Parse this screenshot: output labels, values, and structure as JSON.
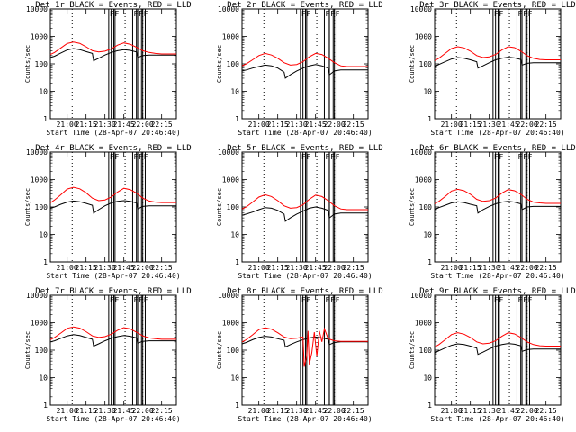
{
  "chart_data": {
    "type": "line",
    "layout": "3x3 grid of panels",
    "yscale": "log",
    "ylim": [
      1,
      10000
    ],
    "yticks": [
      "1",
      "10",
      "100",
      "1000",
      "10000"
    ],
    "ylabel": "Counts/sec",
    "xlabel": "Start Time (28-Apr-07 20:46:40)",
    "xticks": [
      "21:00",
      "21:15",
      "21:30",
      "21:45",
      "22:00",
      "22:15"
    ],
    "xlim": [
      "20:46:40",
      "22:26:40"
    ],
    "series_colors": {
      "events": "#000000",
      "lld": "#ff0000"
    },
    "flag_label": "F",
    "flag_times": [
      "21:33",
      "21:35",
      "21:37",
      "21:38",
      "21:52",
      "21:55",
      "21:56",
      "21:59",
      "22:00",
      "22:02"
    ],
    "dotted_lines": [
      "21:04",
      "21:46",
      "22:00"
    ],
    "panels": [
      {
        "title": "Det 1r BLACK = Events, RED = LLD",
        "events": {
          "times": [
            "20:46:40",
            "20:50",
            "20:55",
            "21:00",
            "21:05",
            "21:10",
            "21:15",
            "21:20",
            "21:21",
            "21:25",
            "21:30",
            "21:35",
            "21:40",
            "21:45",
            "21:50",
            "21:55",
            "21:56",
            "22:00",
            "22:05",
            "22:10",
            "22:15",
            "22:20",
            "22:26:40"
          ],
          "values": [
            170,
            190,
            250,
            320,
            360,
            330,
            280,
            240,
            130,
            160,
            210,
            260,
            300,
            330,
            310,
            270,
            170,
            200,
            210,
            210,
            210,
            210,
            210
          ]
        },
        "lld": {
          "times": [
            "20:46:40",
            "20:50",
            "20:55",
            "21:00",
            "21:05",
            "21:10",
            "21:15",
            "21:20",
            "21:25",
            "21:30",
            "21:35",
            "21:40",
            "21:45",
            "21:50",
            "21:55",
            "22:00",
            "22:05",
            "22:10",
            "22:15",
            "22:20",
            "22:26:40"
          ],
          "values": [
            220,
            260,
            380,
            550,
            620,
            560,
            420,
            300,
            270,
            290,
            350,
            480,
            580,
            520,
            400,
            300,
            260,
            240,
            230,
            230,
            230
          ]
        }
      },
      {
        "title": "Det 2r BLACK = Events, RED = LLD",
        "events": {
          "times": [
            "20:46:40",
            "20:50",
            "20:55",
            "21:00",
            "21:05",
            "21:10",
            "21:15",
            "21:20",
            "21:21",
            "21:25",
            "21:30",
            "21:35",
            "21:40",
            "21:45",
            "21:50",
            "21:55",
            "21:56",
            "22:00",
            "22:05",
            "22:10",
            "22:15",
            "22:20",
            "22:26:40"
          ],
          "values": [
            55,
            60,
            70,
            80,
            90,
            85,
            70,
            50,
            30,
            40,
            55,
            70,
            85,
            95,
            85,
            70,
            40,
            55,
            60,
            60,
            60,
            60,
            60
          ]
        },
        "lld": {
          "times": [
            "20:46:40",
            "20:50",
            "20:55",
            "21:00",
            "21:05",
            "21:10",
            "21:15",
            "21:20",
            "21:25",
            "21:30",
            "21:35",
            "21:40",
            "21:45",
            "21:50",
            "21:55",
            "22:00",
            "22:05",
            "22:10",
            "22:15",
            "22:20",
            "22:26:40"
          ],
          "values": [
            85,
            100,
            140,
            200,
            240,
            210,
            160,
            110,
            90,
            95,
            120,
            180,
            240,
            220,
            160,
            110,
            85,
            80,
            80,
            80,
            80
          ]
        }
      },
      {
        "title": "Det 3r BLACK = Events, RED = LLD",
        "events": {
          "times": [
            "20:46:40",
            "20:50",
            "20:55",
            "21:00",
            "21:05",
            "21:10",
            "21:15",
            "21:20",
            "21:21",
            "21:25",
            "21:30",
            "21:35",
            "21:40",
            "21:45",
            "21:50",
            "21:55",
            "21:56",
            "22:00",
            "22:05",
            "22:10",
            "22:15",
            "22:20",
            "22:26:40"
          ],
          "values": [
            80,
            95,
            120,
            150,
            170,
            160,
            140,
            120,
            70,
            85,
            110,
            140,
            160,
            175,
            165,
            145,
            90,
            105,
            110,
            110,
            110,
            110,
            110
          ]
        },
        "lld": {
          "times": [
            "20:46:40",
            "20:50",
            "20:55",
            "21:00",
            "21:05",
            "21:10",
            "21:15",
            "21:20",
            "21:25",
            "21:30",
            "21:35",
            "21:40",
            "21:45",
            "21:50",
            "21:55",
            "22:00",
            "22:05",
            "22:10",
            "22:15",
            "22:20",
            "22:26:40"
          ],
          "values": [
            130,
            160,
            240,
            360,
            420,
            380,
            290,
            200,
            170,
            180,
            220,
            320,
            420,
            390,
            290,
            200,
            160,
            145,
            140,
            140,
            140
          ]
        }
      },
      {
        "title": "Det 4r BLACK = Events, RED = LLD",
        "events": {
          "times": [
            "20:46:40",
            "20:50",
            "20:55",
            "21:00",
            "21:05",
            "21:10",
            "21:15",
            "21:20",
            "21:21",
            "21:25",
            "21:30",
            "21:35",
            "21:40",
            "21:45",
            "21:50",
            "21:55",
            "21:56",
            "22:00",
            "22:05",
            "22:10",
            "22:15",
            "22:20",
            "22:26:40"
          ],
          "values": [
            90,
            100,
            125,
            150,
            165,
            155,
            135,
            115,
            60,
            80,
            110,
            140,
            160,
            170,
            160,
            140,
            85,
            105,
            110,
            110,
            110,
            110,
            110
          ]
        },
        "lld": {
          "times": [
            "20:46:40",
            "20:50",
            "20:55",
            "21:00",
            "21:05",
            "21:10",
            "21:15",
            "21:20",
            "21:25",
            "21:30",
            "21:35",
            "21:40",
            "21:45",
            "21:50",
            "21:55",
            "22:00",
            "22:05",
            "22:10",
            "22:15",
            "22:20",
            "22:26:40"
          ],
          "values": [
            140,
            180,
            280,
            450,
            520,
            460,
            330,
            210,
            170,
            180,
            230,
            350,
            480,
            430,
            320,
            210,
            165,
            150,
            145,
            145,
            145
          ]
        }
      },
      {
        "title": "Det 5r BLACK = Events, RED = LLD",
        "events": {
          "times": [
            "20:46:40",
            "20:50",
            "20:55",
            "21:00",
            "21:05",
            "21:10",
            "21:15",
            "21:20",
            "21:21",
            "21:25",
            "21:30",
            "21:35",
            "21:40",
            "21:45",
            "21:50",
            "21:55",
            "21:56",
            "22:00",
            "22:05",
            "22:10",
            "22:15",
            "22:20",
            "22:26:40"
          ],
          "values": [
            50,
            55,
            65,
            80,
            95,
            90,
            75,
            55,
            30,
            40,
            55,
            70,
            90,
            100,
            90,
            75,
            40,
            55,
            60,
            60,
            60,
            60,
            60
          ]
        },
        "lld": {
          "times": [
            "20:46:40",
            "20:50",
            "20:55",
            "21:00",
            "21:05",
            "21:10",
            "21:15",
            "21:20",
            "21:25",
            "21:30",
            "21:35",
            "21:40",
            "21:45",
            "21:50",
            "21:55",
            "22:00",
            "22:05",
            "22:10",
            "22:15",
            "22:20",
            "22:26:40"
          ],
          "values": [
            85,
            100,
            150,
            230,
            280,
            240,
            170,
            110,
            90,
            95,
            120,
            190,
            270,
            240,
            170,
            110,
            85,
            80,
            80,
            80,
            80
          ]
        }
      },
      {
        "title": "Det 6r BLACK = Events, RED = LLD",
        "events": {
          "times": [
            "20:46:40",
            "20:50",
            "20:55",
            "21:00",
            "21:05",
            "21:10",
            "21:15",
            "21:20",
            "21:21",
            "21:25",
            "21:30",
            "21:35",
            "21:40",
            "21:45",
            "21:50",
            "21:55",
            "21:56",
            "22:00",
            "22:05",
            "22:10",
            "22:15",
            "22:20",
            "22:26:40"
          ],
          "values": [
            80,
            95,
            115,
            140,
            155,
            145,
            125,
            110,
            60,
            80,
            105,
            130,
            150,
            160,
            150,
            130,
            80,
            100,
            105,
            105,
            105,
            105,
            105
          ]
        },
        "lld": {
          "times": [
            "20:46:40",
            "20:50",
            "20:55",
            "21:00",
            "21:05",
            "21:10",
            "21:15",
            "21:20",
            "21:25",
            "21:30",
            "21:35",
            "21:40",
            "21:45",
            "21:50",
            "21:55",
            "22:00",
            "22:05",
            "22:10",
            "22:15",
            "22:20",
            "22:26:40"
          ],
          "values": [
            130,
            160,
            240,
            380,
            440,
            390,
            290,
            190,
            160,
            170,
            210,
            320,
            430,
            390,
            290,
            190,
            150,
            140,
            135,
            135,
            135
          ]
        }
      },
      {
        "title": "Det 7r BLACK = Events, RED = LLD",
        "events": {
          "times": [
            "20:46:40",
            "20:50",
            "20:55",
            "21:00",
            "21:05",
            "21:10",
            "21:15",
            "21:20",
            "21:21",
            "21:25",
            "21:30",
            "21:35",
            "21:40",
            "21:45",
            "21:50",
            "21:55",
            "21:56",
            "22:00",
            "22:05",
            "22:10",
            "22:15",
            "22:20",
            "22:26:40"
          ],
          "values": [
            200,
            220,
            270,
            330,
            370,
            340,
            290,
            250,
            140,
            170,
            220,
            270,
            310,
            340,
            320,
            280,
            180,
            210,
            220,
            220,
            220,
            220,
            220
          ]
        },
        "lld": {
          "times": [
            "20:46:40",
            "20:50",
            "20:55",
            "21:00",
            "21:05",
            "21:10",
            "21:15",
            "21:20",
            "21:25",
            "21:30",
            "21:35",
            "21:40",
            "21:45",
            "21:50",
            "21:55",
            "22:00",
            "22:05",
            "22:10",
            "22:15",
            "22:20",
            "22:26:40"
          ],
          "values": [
            240,
            290,
            420,
            620,
            700,
            630,
            470,
            330,
            290,
            310,
            380,
            530,
            660,
            600,
            450,
            330,
            280,
            260,
            250,
            250,
            250
          ]
        }
      },
      {
        "title": "Det 8r BLACK = Events, RED = LLD",
        "events": {
          "times": [
            "20:46:40",
            "20:50",
            "20:55",
            "21:00",
            "21:05",
            "21:10",
            "21:15",
            "21:20",
            "21:21",
            "21:25",
            "21:30",
            "21:35",
            "21:40",
            "21:45",
            "21:50",
            "21:55",
            "21:56",
            "22:00",
            "22:05",
            "22:10",
            "22:15",
            "22:20",
            "22:26:40"
          ],
          "values": [
            170,
            190,
            240,
            290,
            320,
            300,
            260,
            230,
            130,
            160,
            200,
            240,
            280,
            300,
            280,
            250,
            160,
            190,
            200,
            200,
            200,
            200,
            200
          ]
        },
        "lld": {
          "times": [
            "20:46:40",
            "20:50",
            "20:55",
            "21:00",
            "21:05",
            "21:10",
            "21:15",
            "21:20",
            "21:25",
            "21:30",
            "21:35",
            "21:36",
            "21:37",
            "21:38",
            "21:39",
            "21:40",
            "21:42",
            "21:44",
            "21:46",
            "21:48",
            "21:50",
            "21:52",
            "21:55",
            "22:00",
            "22:05",
            "22:10",
            "22:15",
            "22:20",
            "22:26:40"
          ],
          "values": [
            200,
            240,
            360,
            560,
            650,
            580,
            430,
            300,
            260,
            270,
            300,
            25,
            40,
            60,
            500,
            30,
            80,
            450,
            60,
            500,
            200,
            600,
            260,
            220,
            210,
            210,
            210,
            210,
            210
          ]
        }
      },
      {
        "title": "Det 9r BLACK = Events, RED = LLD",
        "events": {
          "times": [
            "20:46:40",
            "20:50",
            "20:55",
            "21:00",
            "21:05",
            "21:10",
            "21:15",
            "21:20",
            "21:21",
            "21:25",
            "21:30",
            "21:35",
            "21:40",
            "21:45",
            "21:50",
            "21:55",
            "21:56",
            "22:00",
            "22:05",
            "22:10",
            "22:15",
            "22:20",
            "22:26:40"
          ],
          "values": [
            80,
            95,
            120,
            150,
            170,
            160,
            140,
            120,
            70,
            85,
            110,
            140,
            160,
            175,
            165,
            145,
            90,
            105,
            110,
            110,
            110,
            110,
            110
          ]
        },
        "lld": {
          "times": [
            "20:46:40",
            "20:50",
            "20:55",
            "21:00",
            "21:05",
            "21:10",
            "21:15",
            "21:20",
            "21:25",
            "21:30",
            "21:35",
            "21:40",
            "21:45",
            "21:50",
            "21:55",
            "22:00",
            "22:05",
            "22:10",
            "22:15",
            "22:20",
            "22:26:40"
          ],
          "values": [
            130,
            160,
            240,
            370,
            430,
            380,
            290,
            200,
            170,
            180,
            220,
            320,
            430,
            390,
            290,
            200,
            160,
            145,
            140,
            140,
            140
          ]
        }
      }
    ]
  }
}
